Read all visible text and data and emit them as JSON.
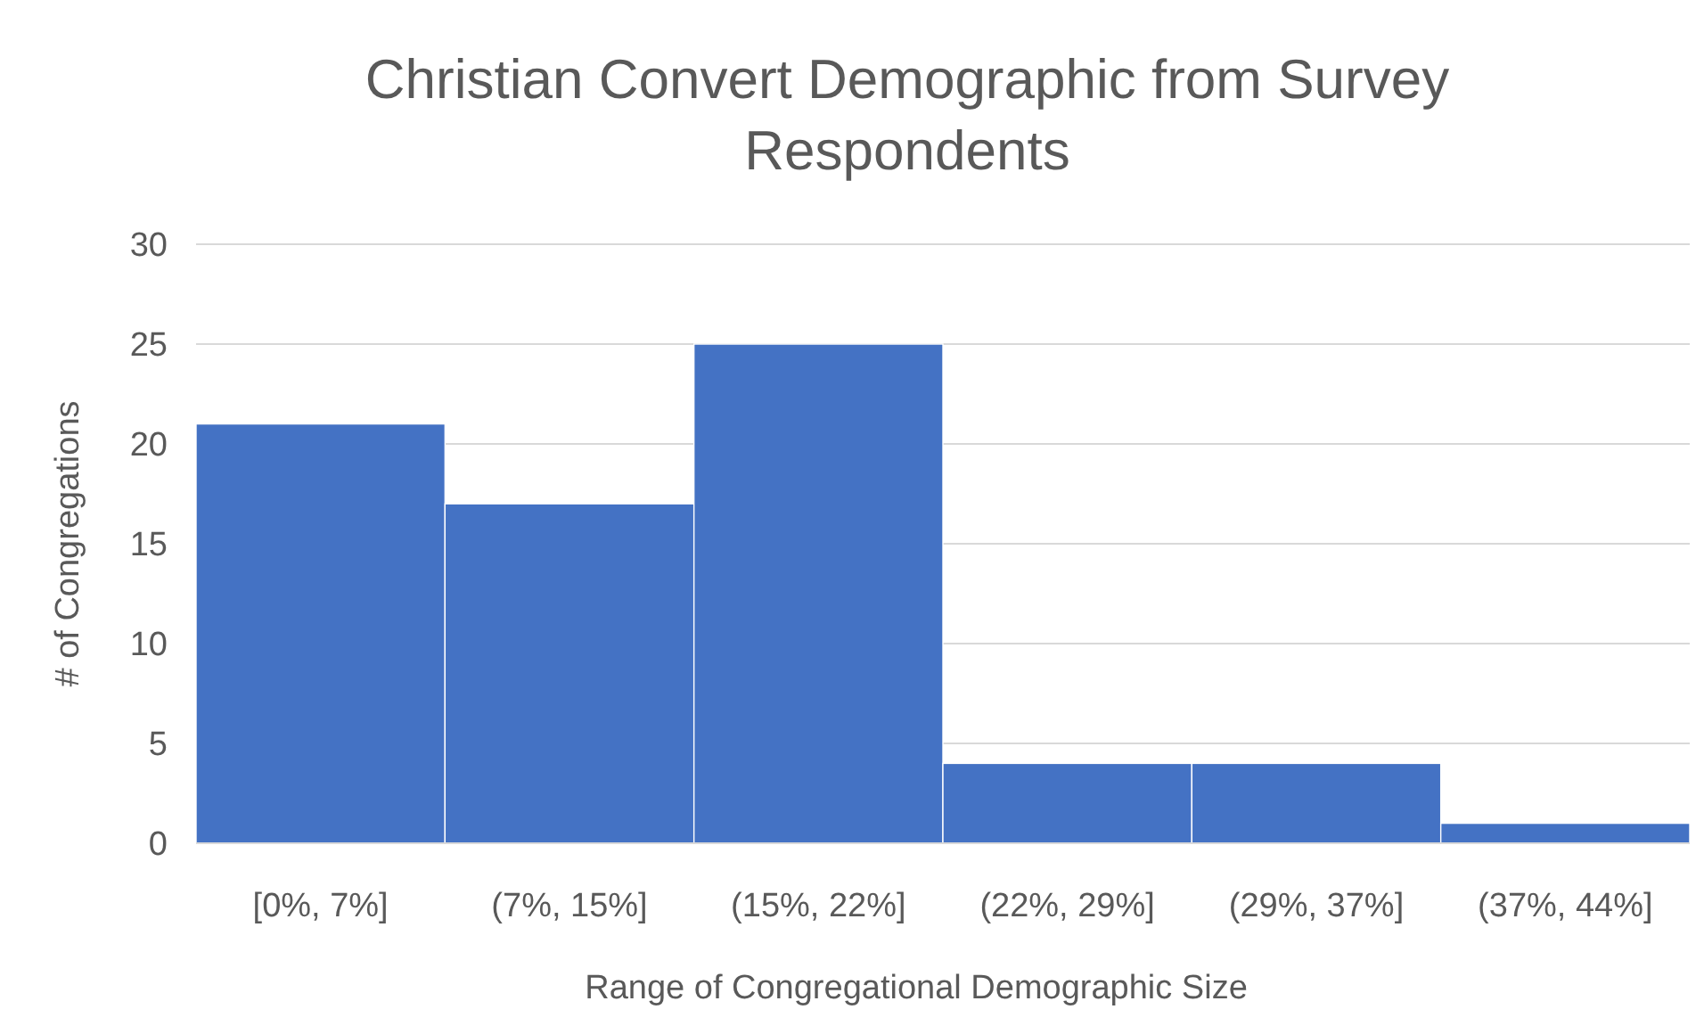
{
  "chart_data": {
    "type": "bar",
    "title": "Christian Convert Demographic from Survey Respondents",
    "xlabel": "Range of Congregational Demographic Size",
    "ylabel": "# of Congregations",
    "categories": [
      "[0%, 7%]",
      "(7%, 15%]",
      "(15%, 22%]",
      "(22%, 29%]",
      "(29%, 37%]",
      "(37%, 44%]"
    ],
    "values": [
      21,
      17,
      25,
      4,
      4,
      1
    ],
    "color": "#4472c4",
    "ylim": [
      0,
      30
    ],
    "yticks": [
      0,
      5,
      10,
      15,
      20,
      25,
      30
    ],
    "grid": "y"
  }
}
